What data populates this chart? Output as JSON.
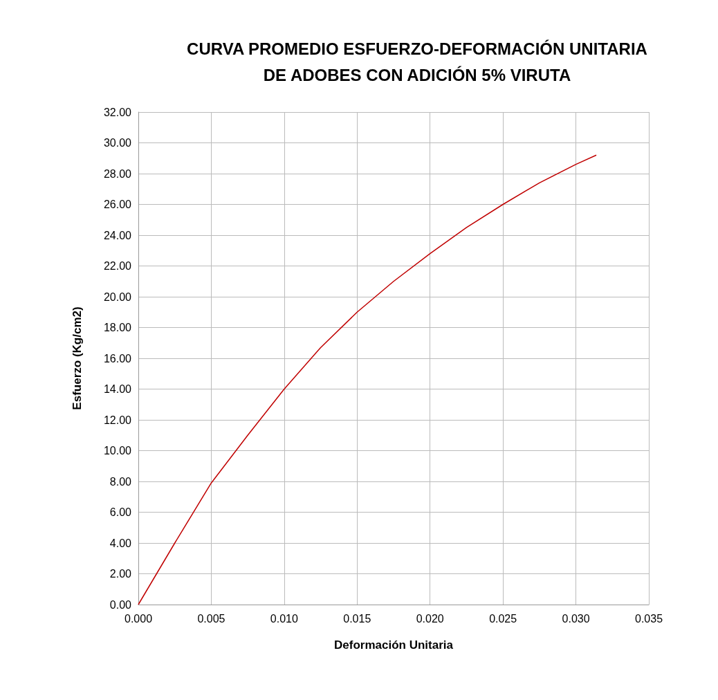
{
  "chart_data": {
    "type": "line",
    "title": "CURVA PROMEDIO ESFUERZO-DEFORMACIÓN UNITARIA\nDE ADOBES CON ADICIÓN 5% VIRUTA",
    "xlabel": "Deformación Unitaria",
    "ylabel": "Esfuerzo (Kg/cm2)",
    "x": [
      0,
      0.0025,
      0.005,
      0.0075,
      0.01,
      0.0125,
      0.015,
      0.0175,
      0.02,
      0.0225,
      0.025,
      0.0275,
      0.03,
      0.0314
    ],
    "series": [
      {
        "color": "#c00000",
        "values": [
          0,
          4.0,
          7.9,
          11.0,
          14.0,
          16.7,
          19.0,
          21.0,
          22.8,
          24.5,
          26.0,
          27.4,
          28.6,
          29.2
        ]
      }
    ],
    "xlim": [
      0,
      0.035
    ],
    "xticks": [
      {
        "value": 0,
        "label": "0.000"
      },
      {
        "value": 0.005,
        "label": "0.005"
      },
      {
        "value": 0.01,
        "label": "0.010"
      },
      {
        "value": 0.015,
        "label": "0.015"
      },
      {
        "value": 0.02,
        "label": "0.020"
      },
      {
        "value": 0.025,
        "label": "0.025"
      },
      {
        "value": 0.03,
        "label": "0.030"
      },
      {
        "value": 0.035,
        "label": "0.035"
      }
    ],
    "ylim": [
      0,
      32
    ],
    "yticks": [
      {
        "value": 0,
        "label": "0.00"
      },
      {
        "value": 2,
        "label": "2.00"
      },
      {
        "value": 4,
        "label": "4.00"
      },
      {
        "value": 6,
        "label": "6.00"
      },
      {
        "value": 8,
        "label": "8.00"
      },
      {
        "value": 10,
        "label": "10.00"
      },
      {
        "value": 12,
        "label": "12.00"
      },
      {
        "value": 14,
        "label": "14.00"
      },
      {
        "value": 16,
        "label": "16.00"
      },
      {
        "value": 18,
        "label": "18.00"
      },
      {
        "value": 20,
        "label": "20.00"
      },
      {
        "value": 22,
        "label": "22.00"
      },
      {
        "value": 24,
        "label": "24.00"
      },
      {
        "value": 26,
        "label": "26.00"
      },
      {
        "value": 28,
        "label": "28.00"
      },
      {
        "value": 30,
        "label": "30.00"
      },
      {
        "value": 32,
        "label": "32.00"
      }
    ],
    "grid": true,
    "marker": "none",
    "line_style": "solid"
  }
}
